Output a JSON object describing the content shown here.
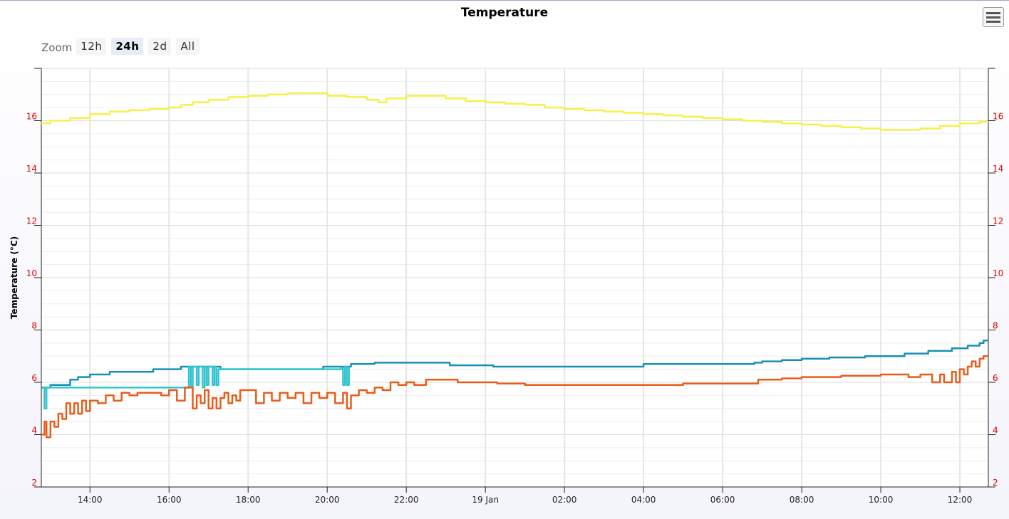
{
  "chart_data": {
    "type": "line",
    "title": "Temperature",
    "ylabel": "Temperature (°C)",
    "xlabel": "",
    "ylim": [
      2,
      18
    ],
    "y_ticks": [
      2,
      4,
      6,
      8,
      10,
      12,
      14,
      16
    ],
    "x_range_hours": [
      12.77,
      36.72
    ],
    "x_ticks": [
      {
        "h": 14,
        "label": "14:00"
      },
      {
        "h": 16,
        "label": "16:00"
      },
      {
        "h": 18,
        "label": "18:00"
      },
      {
        "h": 20,
        "label": "20:00"
      },
      {
        "h": 22,
        "label": "22:00"
      },
      {
        "h": 24,
        "label": "19 Jan"
      },
      {
        "h": 26,
        "label": "02:00"
      },
      {
        "h": 28,
        "label": "04:00"
      },
      {
        "h": 30,
        "label": "06:00"
      },
      {
        "h": 32,
        "label": "08:00"
      },
      {
        "h": 34,
        "label": "10:00"
      },
      {
        "h": 36,
        "label": "12:00"
      }
    ],
    "grid": true,
    "series": [
      {
        "color": "#f7f04a",
        "points": [
          [
            12.77,
            15.9
          ],
          [
            13.0,
            16.0
          ],
          [
            13.5,
            16.1
          ],
          [
            14.0,
            16.25
          ],
          [
            14.5,
            16.35
          ],
          [
            15.0,
            16.4
          ],
          [
            15.5,
            16.45
          ],
          [
            16.0,
            16.5
          ],
          [
            16.3,
            16.6
          ],
          [
            16.6,
            16.7
          ],
          [
            17.0,
            16.8
          ],
          [
            17.5,
            16.9
          ],
          [
            18.0,
            16.95
          ],
          [
            18.5,
            17.0
          ],
          [
            19.0,
            17.05
          ],
          [
            19.5,
            17.05
          ],
          [
            20.0,
            16.95
          ],
          [
            20.5,
            16.9
          ],
          [
            21.0,
            16.8
          ],
          [
            21.3,
            16.7
          ],
          [
            21.5,
            16.85
          ],
          [
            22.0,
            16.95
          ],
          [
            22.5,
            16.95
          ],
          [
            23.0,
            16.85
          ],
          [
            23.5,
            16.75
          ],
          [
            24.0,
            16.7
          ],
          [
            24.5,
            16.65
          ],
          [
            25.0,
            16.6
          ],
          [
            25.5,
            16.5
          ],
          [
            26.0,
            16.45
          ],
          [
            26.5,
            16.4
          ],
          [
            27.0,
            16.35
          ],
          [
            27.5,
            16.3
          ],
          [
            28.0,
            16.25
          ],
          [
            28.5,
            16.2
          ],
          [
            29.0,
            16.15
          ],
          [
            29.5,
            16.1
          ],
          [
            30.0,
            16.05
          ],
          [
            30.5,
            16.0
          ],
          [
            31.0,
            15.95
          ],
          [
            31.5,
            15.9
          ],
          [
            32.0,
            15.85
          ],
          [
            32.5,
            15.8
          ],
          [
            33.0,
            15.75
          ],
          [
            33.5,
            15.7
          ],
          [
            34.0,
            15.65
          ],
          [
            34.5,
            15.65
          ],
          [
            35.0,
            15.7
          ],
          [
            35.5,
            15.8
          ],
          [
            36.0,
            15.9
          ],
          [
            36.5,
            15.95
          ],
          [
            36.72,
            15.95
          ]
        ]
      },
      {
        "color": "#1a8fb5",
        "points": [
          [
            12.77,
            5.8
          ],
          [
            12.95,
            5.8
          ],
          [
            13.0,
            5.9
          ],
          [
            13.3,
            5.9
          ],
          [
            13.5,
            6.1
          ],
          [
            13.7,
            6.2
          ],
          [
            14.0,
            6.3
          ],
          [
            14.3,
            6.3
          ],
          [
            14.5,
            6.4
          ],
          [
            15.0,
            6.4
          ],
          [
            15.5,
            6.4
          ],
          [
            15.6,
            6.5
          ],
          [
            16.0,
            6.5
          ],
          [
            16.3,
            6.6
          ],
          [
            16.8,
            6.6
          ],
          [
            17.0,
            6.6
          ],
          [
            17.2,
            6.6
          ],
          [
            17.3,
            6.5
          ],
          [
            18.0,
            6.5
          ],
          [
            19.0,
            6.5
          ],
          [
            19.8,
            6.5
          ],
          [
            19.9,
            6.6
          ],
          [
            20.5,
            6.6
          ],
          [
            20.6,
            6.7
          ],
          [
            21.0,
            6.7
          ],
          [
            21.2,
            6.75
          ],
          [
            22.0,
            6.75
          ],
          [
            23.0,
            6.75
          ],
          [
            23.1,
            6.65
          ],
          [
            24.0,
            6.65
          ],
          [
            24.2,
            6.6
          ],
          [
            25.0,
            6.6
          ],
          [
            26.0,
            6.6
          ],
          [
            27.0,
            6.6
          ],
          [
            27.9,
            6.6
          ],
          [
            28.0,
            6.7
          ],
          [
            29.0,
            6.7
          ],
          [
            30.0,
            6.7
          ],
          [
            30.7,
            6.7
          ],
          [
            30.8,
            6.75
          ],
          [
            31.0,
            6.8
          ],
          [
            31.5,
            6.85
          ],
          [
            32.0,
            6.9
          ],
          [
            32.5,
            6.9
          ],
          [
            32.7,
            6.95
          ],
          [
            33.0,
            6.95
          ],
          [
            33.5,
            6.95
          ],
          [
            33.6,
            7.0
          ],
          [
            34.0,
            7.0
          ],
          [
            34.5,
            7.0
          ],
          [
            34.6,
            7.1
          ],
          [
            35.0,
            7.1
          ],
          [
            35.2,
            7.2
          ],
          [
            35.7,
            7.2
          ],
          [
            35.8,
            7.3
          ],
          [
            36.2,
            7.4
          ],
          [
            36.5,
            7.5
          ],
          [
            36.6,
            7.6
          ],
          [
            36.72,
            7.6
          ]
        ]
      },
      {
        "color": "#33c5cf",
        "points": [
          [
            12.8,
            5.8
          ],
          [
            12.85,
            5.0
          ],
          [
            12.9,
            5.8
          ],
          [
            16.5,
            6.6
          ],
          [
            16.55,
            5.8
          ],
          [
            16.6,
            6.6
          ],
          [
            16.7,
            5.9
          ],
          [
            16.75,
            6.6
          ],
          [
            16.85,
            5.8
          ],
          [
            16.9,
            6.6
          ],
          [
            16.95,
            5.9
          ],
          [
            17.0,
            6.6
          ],
          [
            17.1,
            5.9
          ],
          [
            17.15,
            6.6
          ],
          [
            17.2,
            5.9
          ],
          [
            17.25,
            6.5
          ],
          [
            20.35,
            6.55
          ],
          [
            20.4,
            5.9
          ],
          [
            20.45,
            6.6
          ],
          [
            20.5,
            5.9
          ],
          [
            20.55,
            6.6
          ]
        ]
      },
      {
        "color": "#e85d1a",
        "points": [
          [
            12.77,
            4.0
          ],
          [
            12.85,
            4.5
          ],
          [
            12.9,
            3.9
          ],
          [
            13.0,
            4.5
          ],
          [
            13.1,
            4.3
          ],
          [
            13.2,
            4.8
          ],
          [
            13.3,
            4.6
          ],
          [
            13.4,
            5.2
          ],
          [
            13.5,
            4.8
          ],
          [
            13.6,
            5.2
          ],
          [
            13.7,
            4.8
          ],
          [
            13.8,
            5.3
          ],
          [
            13.9,
            4.9
          ],
          [
            14.0,
            5.3
          ],
          [
            14.2,
            5.2
          ],
          [
            14.4,
            5.5
          ],
          [
            14.6,
            5.3
          ],
          [
            14.8,
            5.6
          ],
          [
            15.0,
            5.5
          ],
          [
            15.2,
            5.6
          ],
          [
            15.5,
            5.6
          ],
          [
            15.8,
            5.5
          ],
          [
            16.0,
            5.7
          ],
          [
            16.2,
            5.3
          ],
          [
            16.4,
            5.8
          ],
          [
            16.6,
            5.0
          ],
          [
            16.7,
            5.5
          ],
          [
            16.8,
            5.2
          ],
          [
            16.9,
            5.7
          ],
          [
            17.0,
            5.0
          ],
          [
            17.1,
            5.4
          ],
          [
            17.2,
            5.0
          ],
          [
            17.3,
            5.4
          ],
          [
            17.4,
            5.6
          ],
          [
            17.5,
            5.2
          ],
          [
            17.6,
            5.5
          ],
          [
            17.7,
            5.3
          ],
          [
            17.8,
            5.7
          ],
          [
            18.0,
            5.7
          ],
          [
            18.2,
            5.2
          ],
          [
            18.4,
            5.6
          ],
          [
            18.6,
            5.3
          ],
          [
            18.8,
            5.6
          ],
          [
            19.0,
            5.4
          ],
          [
            19.2,
            5.6
          ],
          [
            19.4,
            5.2
          ],
          [
            19.6,
            5.6
          ],
          [
            19.8,
            5.4
          ],
          [
            20.0,
            5.6
          ],
          [
            20.2,
            5.2
          ],
          [
            20.4,
            5.6
          ],
          [
            20.5,
            5.0
          ],
          [
            20.6,
            5.5
          ],
          [
            20.8,
            5.7
          ],
          [
            21.0,
            5.6
          ],
          [
            21.2,
            5.8
          ],
          [
            21.4,
            5.7
          ],
          [
            21.6,
            6.0
          ],
          [
            21.8,
            5.9
          ],
          [
            22.0,
            6.0
          ],
          [
            22.2,
            5.9
          ],
          [
            22.5,
            6.1
          ],
          [
            23.0,
            6.1
          ],
          [
            23.3,
            6.0
          ],
          [
            24.0,
            6.0
          ],
          [
            24.3,
            5.95
          ],
          [
            25.0,
            5.9
          ],
          [
            26.0,
            5.9
          ],
          [
            27.0,
            5.9
          ],
          [
            28.0,
            5.9
          ],
          [
            29.0,
            5.95
          ],
          [
            30.0,
            5.95
          ],
          [
            30.7,
            5.95
          ],
          [
            30.9,
            6.1
          ],
          [
            31.5,
            6.15
          ],
          [
            32.0,
            6.2
          ],
          [
            32.5,
            6.2
          ],
          [
            33.0,
            6.25
          ],
          [
            33.5,
            6.25
          ],
          [
            34.0,
            6.3
          ],
          [
            34.5,
            6.3
          ],
          [
            34.7,
            6.2
          ],
          [
            35.0,
            6.3
          ],
          [
            35.3,
            6.0
          ],
          [
            35.5,
            6.3
          ],
          [
            35.6,
            6.0
          ],
          [
            35.8,
            6.4
          ],
          [
            35.9,
            6.0
          ],
          [
            36.0,
            6.5
          ],
          [
            36.1,
            6.3
          ],
          [
            36.2,
            6.6
          ],
          [
            36.3,
            6.8
          ],
          [
            36.4,
            6.6
          ],
          [
            36.5,
            6.9
          ],
          [
            36.6,
            7.0
          ],
          [
            36.72,
            7.0
          ]
        ]
      }
    ]
  },
  "ui": {
    "zoom_label": "Zoom",
    "zoom_options": [
      "12h",
      "24h",
      "2d",
      "All"
    ],
    "zoom_selected": "24h"
  }
}
